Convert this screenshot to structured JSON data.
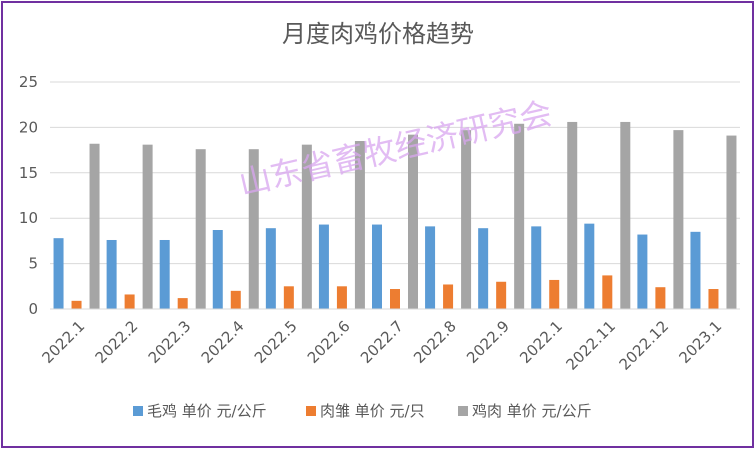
{
  "watermark": "山东省畜牧经济研究会",
  "colors": {
    "frame": "#7030a0",
    "grid": "#d9d9d9",
    "text": "#595959",
    "series": [
      "#5b9bd5",
      "#ed7d31",
      "#a5a5a5"
    ]
  },
  "chart_data": {
    "type": "bar",
    "title": "月度肉鸡价格趋势",
    "categories": [
      "2022.1",
      "2022.2",
      "2022.3",
      "2022.4",
      "2022.5",
      "2022.6",
      "2022.7",
      "2022.8",
      "2022.9",
      "2022.1",
      "2022.11",
      "2022.12",
      "2023.1"
    ],
    "series": [
      {
        "name": "毛鸡 单价 元/公斤",
        "values": [
          7.8,
          7.6,
          7.6,
          8.7,
          8.9,
          9.3,
          9.3,
          9.1,
          8.9,
          9.1,
          9.4,
          8.2,
          8.5
        ]
      },
      {
        "name": "肉雏 单价 元/只",
        "values": [
          0.9,
          1.6,
          1.2,
          2.0,
          2.5,
          2.5,
          2.2,
          2.7,
          3.0,
          3.2,
          3.7,
          2.4,
          2.2
        ]
      },
      {
        "name": "鸡肉 单价 元/公斤",
        "values": [
          18.2,
          18.1,
          17.6,
          17.6,
          18.1,
          18.5,
          19.2,
          19.7,
          20.4,
          20.6,
          20.6,
          19.7,
          19.1
        ]
      }
    ],
    "ylim": [
      0,
      25
    ],
    "yticks": [
      0,
      5,
      10,
      15,
      20,
      25
    ],
    "grid": true,
    "legend": "bottom"
  }
}
